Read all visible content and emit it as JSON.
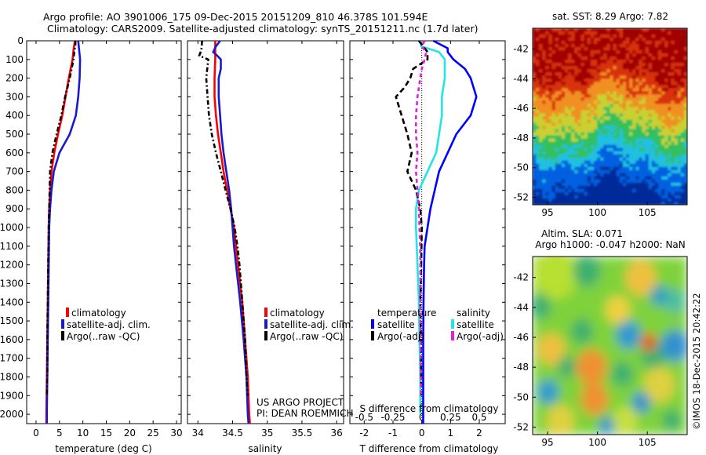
{
  "header": {
    "line1": "Argo profile: AO 3901006_175 09-Dec-2015 20151209_810 46.378S 101.594E",
    "line2": "Climatology: CARS2009. Satellite-adjusted climatology: synTS_20151211.nc (1.7d later)"
  },
  "credits": {
    "project": "US ARGO PROJECT",
    "pi": "PI: DEAN ROEMMICH",
    "stamp": "©IMOS 18-Dec-2015 20:42:22"
  },
  "colors": {
    "climatology": "#ff0000",
    "satellite_clim": "#1a1acc",
    "argo": "#000000",
    "temp_satellite": "#0000ff",
    "sal_satellite": "#22e5e5",
    "sal_argo": "#e020e0"
  },
  "chart_data": [
    {
      "type": "line",
      "id": "temperature",
      "xlabel": "temperature (deg C)",
      "ylabel": "",
      "xlim": [
        -2,
        31
      ],
      "ylim": [
        2050,
        0
      ],
      "xticks": [
        0,
        5,
        10,
        15,
        20,
        25,
        30
      ],
      "yticks": [
        0,
        100,
        200,
        300,
        400,
        500,
        600,
        700,
        800,
        900,
        1000,
        1100,
        1200,
        1300,
        1400,
        1500,
        1600,
        1700,
        1800,
        1900,
        2000
      ],
      "legend": [
        "climatology",
        "satellite-adj. clim.",
        "Argo(..raw -QC)"
      ],
      "legend_position": "bottom-right",
      "series": [
        {
          "name": "climatology",
          "color_key": "climatology",
          "dash": "",
          "y": [
            0,
            50,
            100,
            200,
            300,
            400,
            500,
            600,
            700,
            800,
            900,
            1000,
            1200,
            1400,
            1600,
            1800,
            2000,
            2050
          ],
          "x": [
            8.3,
            8.0,
            7.8,
            7.0,
            6.3,
            5.6,
            4.7,
            3.9,
            3.3,
            3.0,
            2.8,
            2.7,
            2.6,
            2.5,
            2.4,
            2.3,
            2.2,
            2.2
          ]
        },
        {
          "name": "satellite-adj. clim.",
          "color_key": "satellite_clim",
          "dash": "",
          "y": [
            0,
            50,
            100,
            200,
            300,
            400,
            500,
            600,
            700,
            800,
            900,
            1000,
            1200,
            1400,
            1600,
            1800,
            2000,
            2050
          ],
          "x": [
            9.0,
            9.2,
            9.4,
            9.3,
            9.0,
            8.5,
            7.2,
            5.0,
            3.8,
            3.3,
            3.0,
            2.8,
            2.7,
            2.6,
            2.5,
            2.4,
            2.3,
            2.3
          ]
        },
        {
          "name": "Argo(..raw -QC)",
          "color_key": "argo",
          "dash": "6,3,2,3",
          "y": [
            0,
            20,
            50,
            100,
            200,
            300,
            400,
            500,
            600,
            700,
            800,
            900,
            1000,
            1200,
            1400,
            1600,
            1800,
            1900
          ],
          "x": [
            8.4,
            8.4,
            8.2,
            8.0,
            7.2,
            6.2,
            5.4,
            4.4,
            3.5,
            3.0,
            2.9,
            2.8,
            2.7,
            2.6,
            2.5,
            2.4,
            2.4,
            2.3
          ]
        }
      ]
    },
    {
      "type": "line",
      "id": "salinity",
      "xlabel": "salinity",
      "ylabel": "",
      "xlim": [
        33.85,
        36.1
      ],
      "ylim": [
        2050,
        0
      ],
      "xticks": [
        34,
        34.5,
        35,
        35.5,
        36
      ],
      "legend": [
        "climatology",
        "satellite-adj. clim.",
        "Argo(..raw -QC)"
      ],
      "legend_position": "bottom-right",
      "series": [
        {
          "name": "climatology",
          "color_key": "climatology",
          "dash": "",
          "y": [
            0,
            100,
            200,
            300,
            400,
            500,
            600,
            700,
            800,
            900,
            1000,
            1100,
            1200,
            1300,
            1400,
            1600,
            1800,
            2000,
            2050
          ],
          "x": [
            34.25,
            34.25,
            34.24,
            34.24,
            34.26,
            34.29,
            34.33,
            34.37,
            34.42,
            34.47,
            34.52,
            34.55,
            34.58,
            34.61,
            34.64,
            34.68,
            34.72,
            34.74,
            34.75
          ]
        },
        {
          "name": "satellite-adj. clim.",
          "color_key": "satellite_clim",
          "dash": "",
          "y": [
            0,
            30,
            60,
            80,
            100,
            150,
            200,
            300,
            400,
            500,
            600,
            700,
            800,
            900,
            1000,
            1100,
            1200,
            1300,
            1400,
            1600,
            1800,
            2000,
            2050
          ],
          "x": [
            34.32,
            34.26,
            34.22,
            34.28,
            34.33,
            34.33,
            34.3,
            34.3,
            34.32,
            34.34,
            34.37,
            34.41,
            34.45,
            34.48,
            34.5,
            34.52,
            34.55,
            34.58,
            34.61,
            34.66,
            34.7,
            34.72,
            34.73
          ]
        },
        {
          "name": "Argo(..raw -QC)",
          "color_key": "argo",
          "dash": "6,3,2,3",
          "y": [
            0,
            50,
            80,
            100,
            200,
            300,
            400,
            500,
            600,
            700,
            800,
            900,
            1000,
            1100,
            1200,
            1400,
            1600,
            1800,
            1900
          ],
          "x": [
            34.06,
            34.05,
            34.02,
            34.15,
            34.12,
            34.14,
            34.16,
            34.2,
            34.26,
            34.33,
            34.4,
            34.47,
            34.53,
            34.57,
            34.6,
            34.64,
            34.68,
            34.7,
            34.72
          ]
        }
      ]
    },
    {
      "type": "line",
      "id": "difference",
      "xlabel": "T difference from climatology",
      "xlabel_top": "S difference from climatology",
      "ylabel": "",
      "xlim": [
        -2.5,
        2.9
      ],
      "ylim": [
        2050,
        0
      ],
      "xticks_bottom": [
        -2,
        -1,
        0,
        1,
        2
      ],
      "xticks_top": [
        -0.5,
        -0.25,
        0,
        0.25,
        0.5
      ],
      "legend_groups": [
        {
          "title": "temperature",
          "items": [
            "satellite",
            "Argo(-adj)"
          ]
        },
        {
          "title": "salinity",
          "items": [
            "satellite",
            "Argo(-adj)"
          ]
        }
      ],
      "series": [
        {
          "name": "temperature satellite",
          "color_key": "temp_satellite",
          "dash": "",
          "y": [
            0,
            40,
            60,
            100,
            150,
            200,
            300,
            400,
            500,
            600,
            700,
            800,
            900,
            1000,
            1100,
            1200,
            1400,
            1600,
            1800,
            2000,
            2050
          ],
          "x": [
            0.4,
            0.9,
            0.9,
            1.1,
            1.5,
            1.7,
            1.9,
            1.7,
            1.2,
            0.9,
            0.6,
            0.45,
            0.3,
            0.2,
            0.1,
            0.08,
            0.06,
            0.05,
            0.05,
            0.05,
            0.05
          ]
        },
        {
          "name": "salinity satellite",
          "color_key": "sal_satellite",
          "dash": "",
          "y": [
            0,
            30,
            60,
            100,
            200,
            300,
            400,
            500,
            600,
            700,
            800,
            900,
            1000,
            1200,
            1400,
            1600,
            1800,
            2000
          ],
          "x": [
            -0.03,
            -0.02,
            0.6,
            0.8,
            0.8,
            0.7,
            0.7,
            0.6,
            0.5,
            0.2,
            -0.1,
            -0.2,
            -0.2,
            -0.15,
            -0.1,
            -0.08,
            -0.05,
            -0.05
          ]
        },
        {
          "name": "temperature Argo(-adj)",
          "color_key": "argo",
          "dash": "7,4",
          "y": [
            0,
            30,
            60,
            100,
            150,
            200,
            250,
            300,
            400,
            500,
            600,
            700,
            800,
            900,
            1000,
            1200,
            1400,
            1600,
            1800,
            1900
          ],
          "x": [
            -0.1,
            0.05,
            0.2,
            0.2,
            -0.3,
            -0.4,
            -0.6,
            -0.9,
            -0.7,
            -0.5,
            -0.35,
            -0.5,
            -0.2,
            -0.05,
            0.0,
            -0.02,
            -0.05,
            -0.03,
            -0.02,
            -0.02
          ]
        },
        {
          "name": "salinity Argo(-adj)",
          "color_key": "sal_argo",
          "dash": "5,4",
          "y": [
            0,
            30,
            60,
            100,
            150,
            200,
            300,
            400,
            500,
            600,
            700,
            800,
            900,
            1000,
            1100,
            1200,
            1400,
            1600,
            1800,
            1900
          ],
          "x": [
            0.1,
            0.0,
            0.15,
            0.1,
            0.0,
            -0.05,
            -0.15,
            -0.2,
            -0.2,
            -0.15,
            -0.2,
            -0.15,
            -0.1,
            -0.08,
            -0.06,
            -0.05,
            -0.05,
            -0.04,
            -0.03,
            -0.03
          ]
        }
      ]
    },
    {
      "type": "heatmap",
      "id": "sst_map",
      "title": "sat. SST: 8.29 Argo: 7.82",
      "xticks": [
        95,
        100,
        105
      ],
      "yticks": [
        -42,
        -44,
        -46,
        -48,
        -50,
        -52
      ],
      "xlim": [
        93.5,
        109
      ],
      "ylim": [
        -52.5,
        -40.6
      ],
      "colorscale": [
        "#002a9a",
        "#0060e0",
        "#20c0e0",
        "#30c060",
        "#c8d030",
        "#f09020",
        "#d83010",
        "#a00000"
      ]
    },
    {
      "type": "heatmap",
      "id": "sla_map",
      "title_line1": "Altim. SLA: 0.071",
      "title_line2": "Argo h1000: -0.047 h2000: NaN",
      "xticks": [
        95,
        100,
        105
      ],
      "yticks": [
        -42,
        -44,
        -46,
        -48,
        -50,
        -52
      ],
      "xlim": [
        93.5,
        109
      ],
      "ylim": [
        -52.5,
        -40.6
      ]
    }
  ]
}
